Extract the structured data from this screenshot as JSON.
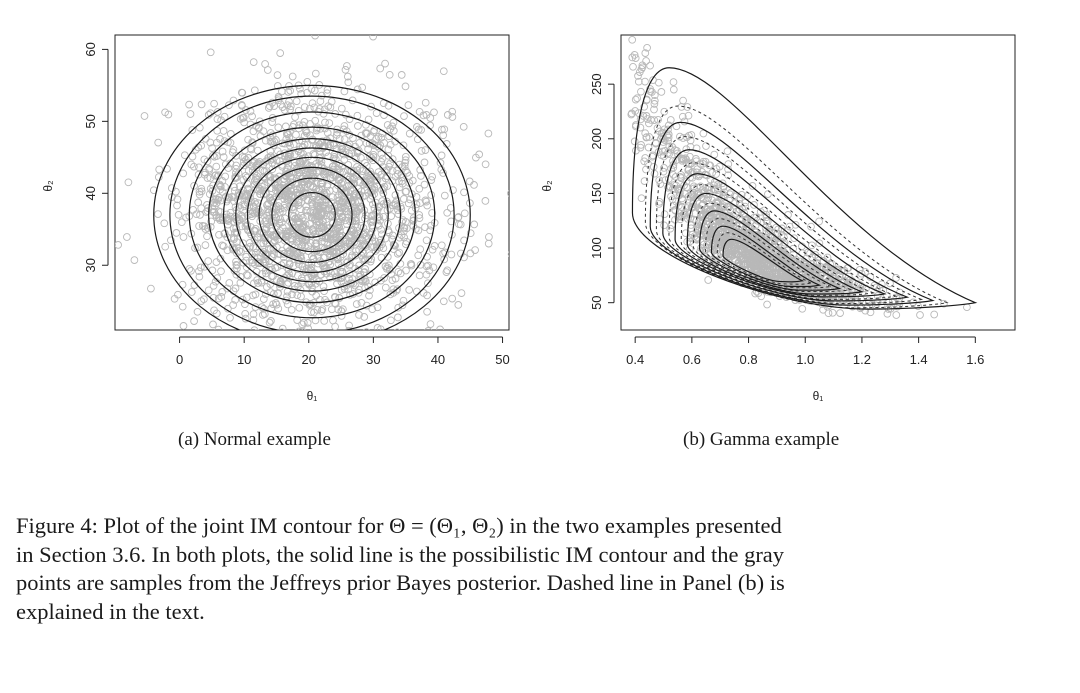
{
  "figure": {
    "panels": [
      {
        "subcaption": "(a) Normal example",
        "xlabel": "θ₁",
        "ylabel": "θ₂"
      },
      {
        "subcaption": "(b) Gamma example",
        "xlabel": "θ₁",
        "ylabel": "θ₂"
      }
    ],
    "caption_lines": [
      "Figure 4: Plot of the joint IM contour for Θ = (Θ₁, Θ₂) in the two examples presented",
      "in Section 3.6. In both plots, the solid line is the possibilistic IM contour and the gray",
      "points are samples from the Jeffreys prior Bayes posterior. Dashed line in Panel (b) is",
      "explained in the text."
    ]
  },
  "chart_data": [
    {
      "type": "scatter",
      "title": "",
      "xlabel": "θ₁",
      "ylabel": "θ₂",
      "xlim": [
        -10,
        51
      ],
      "ylim": [
        21,
        62
      ],
      "xticks": [
        0,
        10,
        20,
        30,
        40,
        50
      ],
      "yticks": [
        30,
        40,
        50,
        60
      ],
      "points": {
        "color": "#b8b8b8",
        "n_approx": 2000,
        "center": [
          20.5,
          37.5
        ],
        "spread": [
          10,
          8
        ]
      },
      "contours": {
        "style": "solid",
        "color": "#1a1a1a",
        "center": [
          20.5,
          37
        ],
        "radii": [
          [
            3.6,
            3.1
          ],
          [
            6.2,
            5.1
          ],
          [
            8.2,
            6.6
          ],
          [
            10.0,
            8.0
          ],
          [
            11.8,
            9.3
          ],
          [
            13.7,
            10.6
          ],
          [
            16.0,
            12.2
          ],
          [
            19.0,
            14.3
          ],
          [
            22.0,
            16.5
          ],
          [
            24.5,
            18.0
          ]
        ]
      },
      "grid": false,
      "legend": "none"
    },
    {
      "type": "scatter",
      "title": "",
      "xlabel": "θ₁",
      "ylabel": "θ₂",
      "xlim": [
        0.35,
        1.74
      ],
      "ylim": [
        25,
        295
      ],
      "xticks": [
        0.4,
        0.6,
        0.8,
        1.0,
        1.2,
        1.4,
        1.6
      ],
      "yticks": [
        50,
        100,
        150,
        200,
        250
      ],
      "points": {
        "color": "#b8b8b8",
        "n_approx": 1500,
        "center": [
          0.82,
          95
        ]
      },
      "contours": {
        "solid": {
          "color": "#1a1a1a",
          "levels": [
            {
              "tip": [
                1.6,
                50
              ],
              "peak": [
                0.52,
                265
              ]
            },
            {
              "tip": [
                1.45,
                52
              ],
              "peak": [
                0.56,
                215
              ]
            },
            {
              "tip": [
                1.36,
                55
              ],
              "peak": [
                0.59,
                190
              ]
            },
            {
              "tip": [
                1.28,
                58
              ],
              "peak": [
                0.62,
                168
              ]
            },
            {
              "tip": [
                1.2,
                60
              ],
              "peak": [
                0.65,
                150
              ]
            },
            {
              "tip": [
                1.12,
                63
              ],
              "peak": [
                0.68,
                134
              ]
            },
            {
              "tip": [
                1.05,
                66
              ],
              "peak": [
                0.71,
                120
              ]
            },
            {
              "tip": [
                0.99,
                70
              ],
              "peak": [
                0.74,
                108
              ]
            }
          ]
        },
        "dashed": {
          "color": "#333333",
          "levels": [
            {
              "tip": [
                1.5,
                50
              ],
              "peak": [
                0.55,
                230
              ]
            },
            {
              "tip": [
                1.41,
                53
              ],
              "peak": [
                0.575,
                202
              ]
            },
            {
              "tip": [
                1.32,
                56
              ],
              "peak": [
                0.605,
                178
              ]
            },
            {
              "tip": [
                1.24,
                59
              ],
              "peak": [
                0.635,
                158
              ]
            },
            {
              "tip": [
                1.16,
                62
              ],
              "peak": [
                0.665,
                141
              ]
            },
            {
              "tip": [
                1.09,
                65
              ],
              "peak": [
                0.695,
                127
              ]
            },
            {
              "tip": [
                1.02,
                68
              ],
              "peak": [
                0.725,
                114
              ]
            }
          ]
        }
      },
      "grid": false,
      "legend": "none"
    }
  ]
}
